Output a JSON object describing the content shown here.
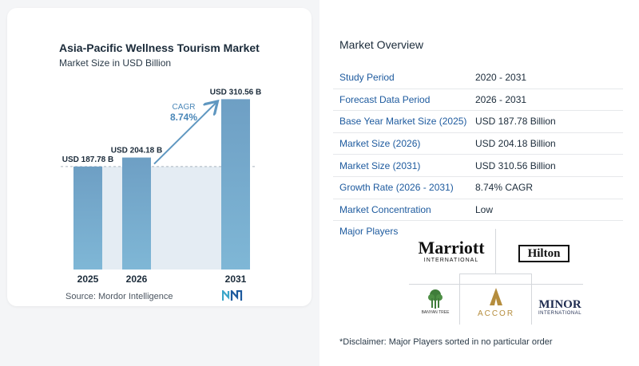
{
  "chart_data": {
    "type": "bar",
    "title": "Asia-Pacific Wellness Tourism Market",
    "subtitle": "Market Size in USD Billion",
    "categories": [
      "2025",
      "2026",
      "2031"
    ],
    "values": [
      187.78,
      204.18,
      310.56
    ],
    "value_labels": [
      "USD 187.78 B",
      "USD 204.18 B",
      "USD 310.56 B"
    ],
    "cagr_label": "CAGR",
    "cagr_value": "8.74%",
    "ylim": [
      0,
      320
    ],
    "grid": false,
    "colors": {
      "bar_top": "#6e9fc4",
      "bar_bottom": "#7fb7d6",
      "shade": "#e4ecf3",
      "arrow": "#5f97c0",
      "cagr": "#4a87b8"
    }
  },
  "source": "Source:  Mordor Intelligence",
  "overview": {
    "title": "Market Overview",
    "rows": [
      {
        "label": "Study Period",
        "value": "2020 - 2031"
      },
      {
        "label": "Forecast Data Period",
        "value": "2026 - 2031"
      },
      {
        "label": "Base Year Market Size (2025)",
        "value": "USD 187.78 Billion"
      },
      {
        "label": "Market Size (2026)",
        "value": "USD 204.18 Billion"
      },
      {
        "label": "Market Size (2031)",
        "value": "USD 310.56 Billion"
      },
      {
        "label": "Growth Rate (2026 - 2031)",
        "value": "8.74% CAGR"
      },
      {
        "label": "Market Concentration",
        "value": "Low"
      }
    ]
  },
  "players": {
    "title": "Major Players",
    "marriott": {
      "name": "Marriott",
      "sub": "INTERNATIONAL"
    },
    "hilton": "Hilton",
    "banyan": "BANYAN TREE",
    "accor": "ACCOR",
    "minor": {
      "name": "MINOR",
      "sub": "INTERNATIONAL"
    }
  },
  "disclaimer": "*Disclaimer: Major Players sorted in no particular order"
}
